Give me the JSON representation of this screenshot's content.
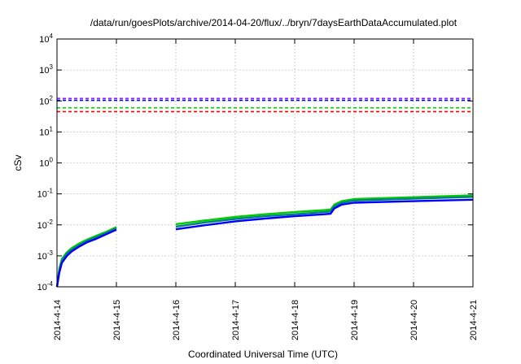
{
  "chart_data": {
    "type": "line",
    "title": "/data/run/goesPlots/archive/2014-04-20/flux/../bryn/7daysEarthDataAccumulated.plot",
    "xlabel": "Coordinated Universal Time (UTC)",
    "ylabel": "cSv",
    "y_scale": "log",
    "ylim": [
      0.0001,
      10000
    ],
    "xlim": [
      "2014-4-14",
      "2014-4-21"
    ],
    "x_ticks": [
      "2014-4-14",
      "2014-4-15",
      "2014-4-16",
      "2014-4-17",
      "2014-4-18",
      "2014-4-19",
      "2014-4-20",
      "2014-4-21"
    ],
    "y_ticks": [
      {
        "value": 0.0001,
        "base": "10",
        "exp": "-4"
      },
      {
        "value": 0.001,
        "base": "10",
        "exp": "-3"
      },
      {
        "value": 0.01,
        "base": "10",
        "exp": "-2"
      },
      {
        "value": 0.1,
        "base": "10",
        "exp": "-1"
      },
      {
        "value": 1,
        "base": "10",
        "exp": "0"
      },
      {
        "value": 10,
        "base": "10",
        "exp": "1"
      },
      {
        "value": 100,
        "base": "10",
        "exp": "2"
      },
      {
        "value": 1000,
        "base": "10",
        "exp": "3"
      },
      {
        "value": 10000,
        "base": "10",
        "exp": "4"
      }
    ],
    "grid": true,
    "thresholds": [
      {
        "value": 120,
        "color": "#a020f0"
      },
      {
        "value": 105,
        "color": "#0000ff"
      },
      {
        "value": 60,
        "color": "#00cc00"
      },
      {
        "value": 45,
        "color": "#ff0000"
      }
    ],
    "series": [
      {
        "color": "#00cc00",
        "segments": [
          [
            [
              "2014-04-14 00:00",
              0.0001
            ],
            [
              "2014-04-14 01:00",
              0.0004
            ],
            [
              "2014-04-14 02:00",
              0.0008
            ],
            [
              "2014-04-14 04:00",
              0.0013
            ],
            [
              "2014-04-14 06:00",
              0.0018
            ],
            [
              "2014-04-14 09:00",
              0.0025
            ],
            [
              "2014-04-14 12:00",
              0.0033
            ],
            [
              "2014-04-14 16:00",
              0.0045
            ],
            [
              "2014-04-14 20:00",
              0.006
            ],
            [
              "2014-04-15 00:00",
              0.0085
            ]
          ],
          [
            [
              "2014-04-16 00:00",
              0.0105
            ],
            [
              "2014-04-16 12:00",
              0.014
            ],
            [
              "2014-04-17 00:00",
              0.018
            ],
            [
              "2014-04-17 12:00",
              0.022
            ],
            [
              "2014-04-18 00:00",
              0.026
            ],
            [
              "2014-04-18 12:00",
              0.03
            ],
            [
              "2014-04-18 14:30",
              0.031
            ],
            [
              "2014-04-18 16:00",
              0.045
            ],
            [
              "2014-04-18 19:00",
              0.058
            ],
            [
              "2014-04-19 00:00",
              0.068
            ],
            [
              "2014-04-20 00:00",
              0.078
            ],
            [
              "2014-04-21 00:00",
              0.09
            ]
          ]
        ]
      },
      {
        "color": "#008080",
        "segments": [
          [
            [
              "2014-04-14 00:00",
              0.0001
            ],
            [
              "2014-04-14 01:00",
              0.00035
            ],
            [
              "2014-04-14 02:00",
              0.0007
            ],
            [
              "2014-04-14 04:00",
              0.0012
            ],
            [
              "2014-04-14 06:00",
              0.0016
            ],
            [
              "2014-04-14 09:00",
              0.0022
            ],
            [
              "2014-04-14 12:00",
              0.003
            ],
            [
              "2014-04-14 16:00",
              0.004
            ],
            [
              "2014-04-14 20:00",
              0.0055
            ],
            [
              "2014-04-15 00:00",
              0.0078
            ]
          ],
          [
            [
              "2014-04-16 00:00",
              0.0088
            ],
            [
              "2014-04-16 12:00",
              0.012
            ],
            [
              "2014-04-17 00:00",
              0.0155
            ],
            [
              "2014-04-17 12:00",
              0.019
            ],
            [
              "2014-04-18 00:00",
              0.022
            ],
            [
              "2014-04-18 12:00",
              0.026
            ],
            [
              "2014-04-18 14:30",
              0.027
            ],
            [
              "2014-04-18 16:00",
              0.04
            ],
            [
              "2014-04-18 19:00",
              0.052
            ],
            [
              "2014-04-19 00:00",
              0.061
            ],
            [
              "2014-04-20 00:00",
              0.07
            ],
            [
              "2014-04-21 00:00",
              0.08
            ]
          ]
        ]
      },
      {
        "color": "#0000ff",
        "segments": [
          [
            [
              "2014-04-14 00:00",
              0.0001
            ],
            [
              "2014-04-14 01:00",
              0.0003
            ],
            [
              "2014-04-14 02:00",
              0.0006
            ],
            [
              "2014-04-14 04:00",
              0.001
            ],
            [
              "2014-04-14 06:00",
              0.0014
            ],
            [
              "2014-04-14 09:00",
              0.002
            ],
            [
              "2014-04-14 12:00",
              0.0027
            ],
            [
              "2014-04-14 16:00",
              0.0036
            ],
            [
              "2014-04-14 20:00",
              0.005
            ],
            [
              "2014-04-15 00:00",
              0.007
            ]
          ],
          [
            [
              "2014-04-16 00:00",
              0.0072
            ],
            [
              "2014-04-16 12:00",
              0.0098
            ],
            [
              "2014-04-17 00:00",
              0.013
            ],
            [
              "2014-04-17 12:00",
              0.016
            ],
            [
              "2014-04-18 00:00",
              0.019
            ],
            [
              "2014-04-18 12:00",
              0.022
            ],
            [
              "2014-04-18 14:30",
              0.023
            ],
            [
              "2014-04-18 16:00",
              0.034
            ],
            [
              "2014-04-18 19:00",
              0.045
            ],
            [
              "2014-04-19 00:00",
              0.052
            ],
            [
              "2014-04-20 00:00",
              0.058
            ],
            [
              "2014-04-21 00:00",
              0.065
            ]
          ]
        ]
      }
    ]
  }
}
